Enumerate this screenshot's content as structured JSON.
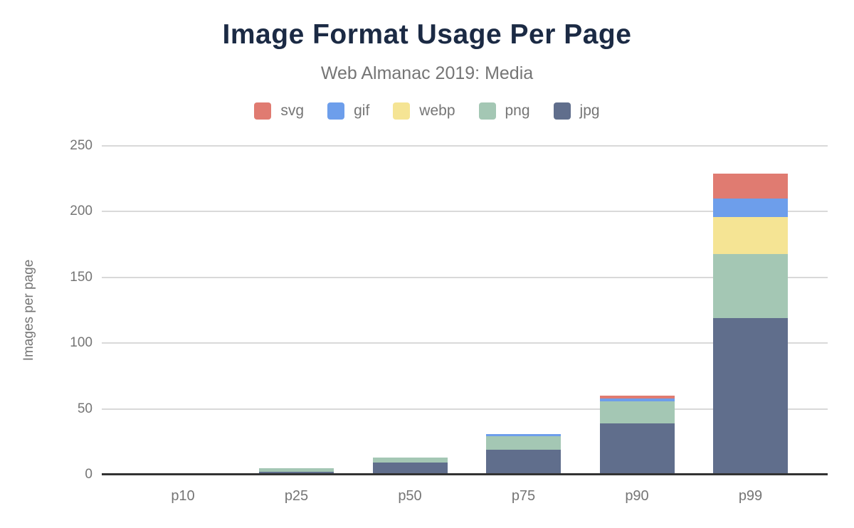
{
  "page": {
    "title": "Image Format Usage Per Page",
    "subtitle": "Web Almanac 2019: Media"
  },
  "colors": {
    "title_text": "#1b2a44",
    "muted_text": "#757575",
    "gridline": "#d9d9d9",
    "axis_baseline": "#333333",
    "background": "#ffffff",
    "svg": "#e07b71",
    "gif": "#6d9eeb",
    "webp": "#f5e494",
    "png": "#a4c7b4",
    "jpg": "#606e8c"
  },
  "chart_data": {
    "type": "bar",
    "stacked": true,
    "title": "Image Format Usage Per Page",
    "subtitle": "Web Almanac 2019: Media",
    "xlabel": "",
    "ylabel": "Images per page",
    "ylim": [
      0,
      250
    ],
    "yticks": [
      0,
      50,
      100,
      150,
      200,
      250
    ],
    "grid": true,
    "legend_position": "top",
    "categories": [
      "p10",
      "p25",
      "p50",
      "p75",
      "p90",
      "p99"
    ],
    "stack_order_bottom_to_top": [
      "jpg",
      "png",
      "webp",
      "gif",
      "svg"
    ],
    "series": [
      {
        "name": "svg",
        "color": "#e07b71",
        "values": [
          0,
          0,
          0,
          0,
          2,
          19
        ]
      },
      {
        "name": "gif",
        "color": "#6d9eeb",
        "values": [
          0,
          0,
          0,
          2,
          2,
          14
        ]
      },
      {
        "name": "webp",
        "color": "#f5e494",
        "values": [
          0,
          0,
          0,
          0,
          0,
          28
        ]
      },
      {
        "name": "png",
        "color": "#a4c7b4",
        "values": [
          0,
          3,
          4,
          10,
          17,
          49
        ]
      },
      {
        "name": "jpg",
        "color": "#606e8c",
        "values": [
          0,
          2,
          9,
          19,
          39,
          119
        ]
      }
    ],
    "stack_totals": [
      0,
      5,
      13,
      31,
      60,
      229
    ]
  }
}
